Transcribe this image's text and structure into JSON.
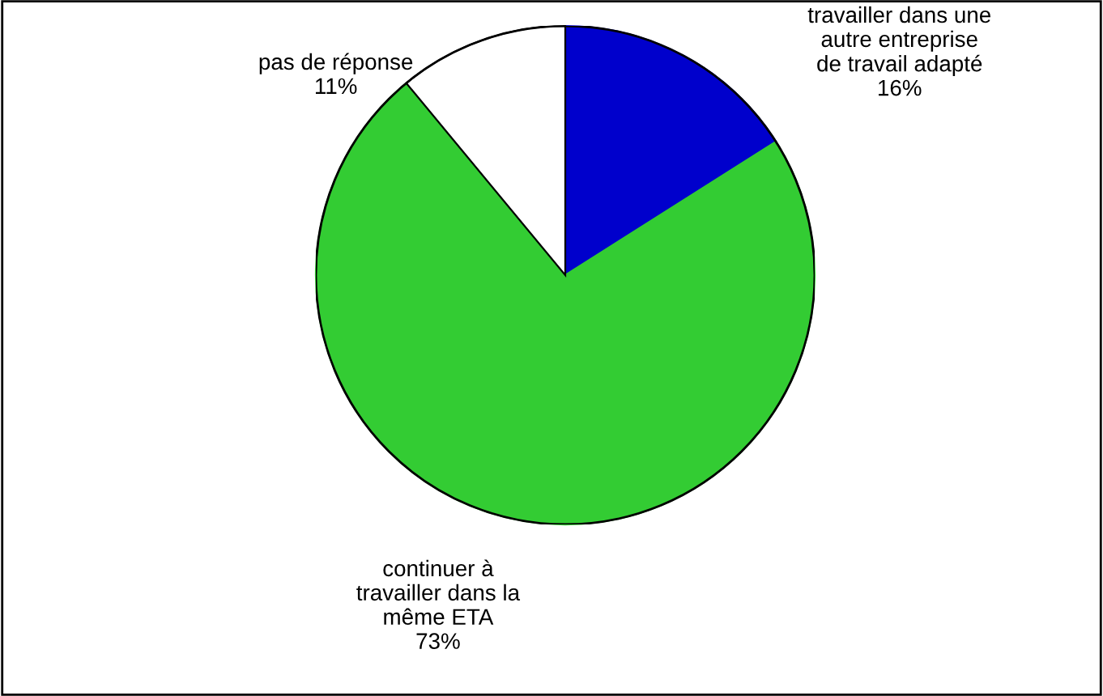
{
  "chart_data": {
    "type": "pie",
    "categories": [
      "travailler dans une\nautre entreprise\nde travail adapté",
      "continuer à\ntravailler dans la\nmême ETA",
      "pas de réponse"
    ],
    "values": [
      16,
      73,
      11
    ],
    "value_labels": [
      "16%",
      "73%",
      "11%"
    ],
    "colors": [
      "#0000cc",
      "#33cc33",
      "#ffffff"
    ],
    "legend": false
  }
}
